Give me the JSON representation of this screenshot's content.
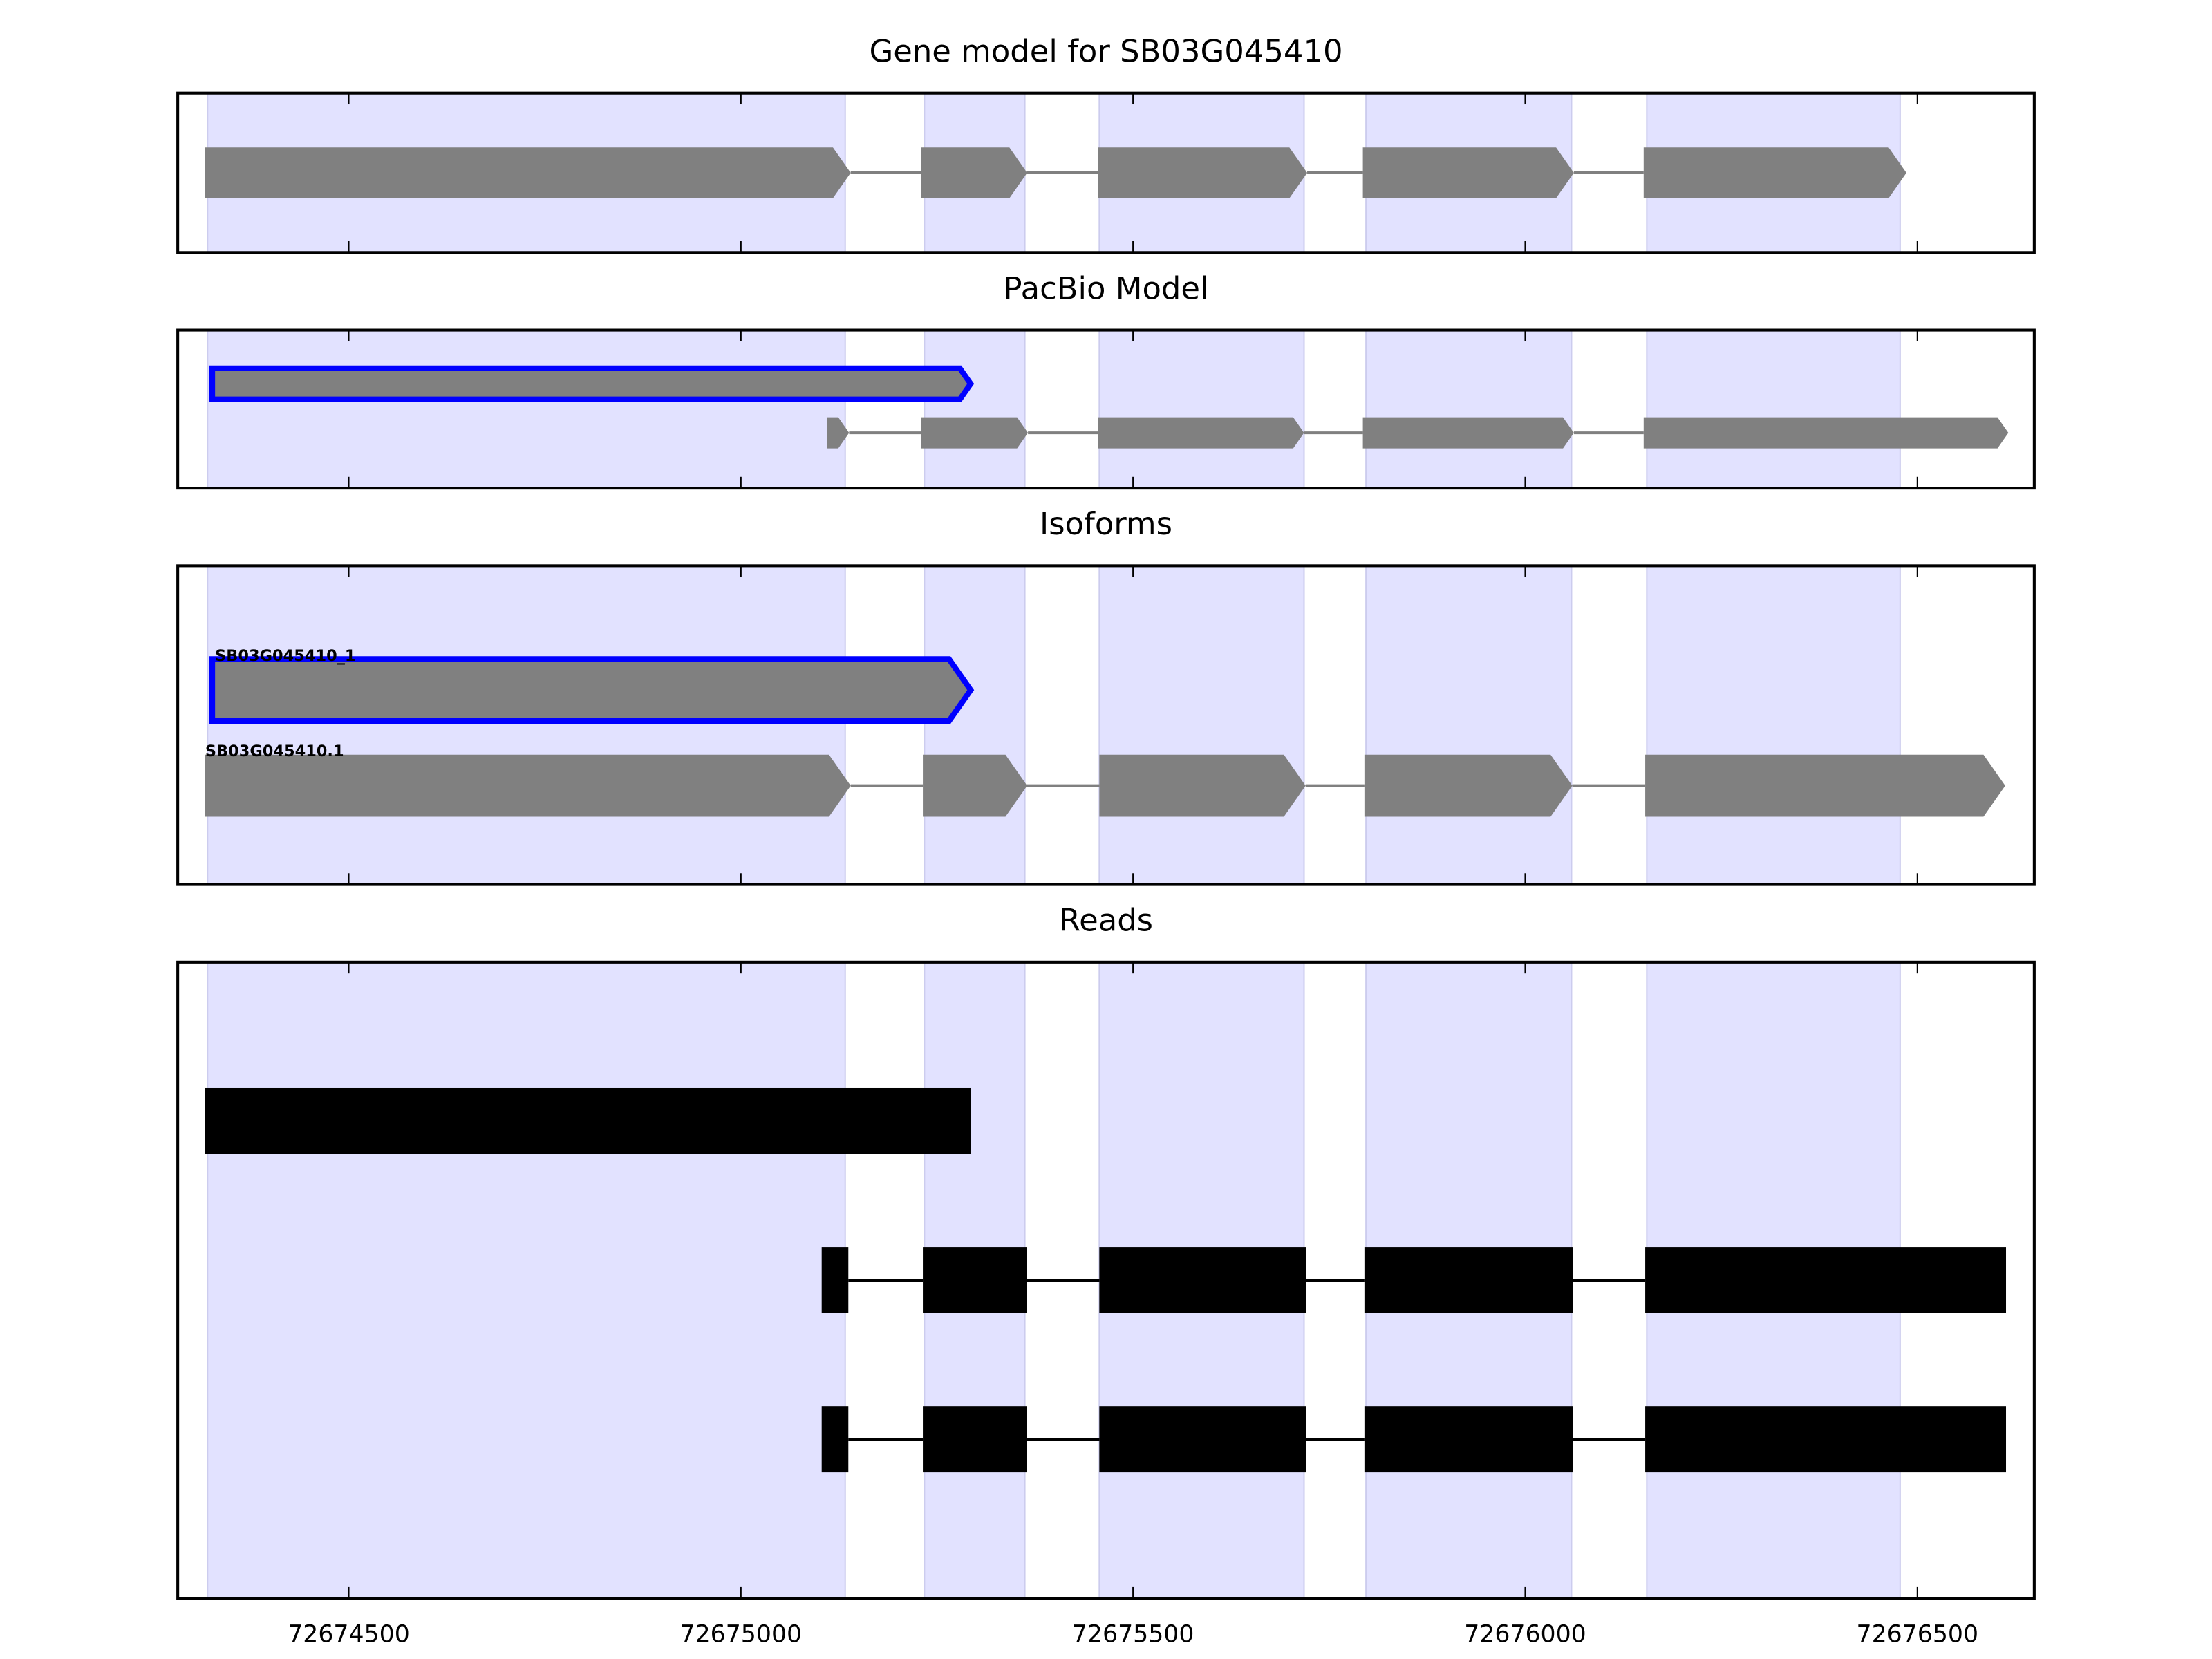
{
  "chart_data": [
    {
      "type": "gene",
      "title": "Gene model for SB03G045410",
      "xlim": [
        72674282,
        72676649
      ],
      "xticks": [
        72674500,
        72675000,
        72675500,
        72676000,
        72676500
      ],
      "shaded": [
        [
          72674320,
          72675133
        ],
        [
          72675234,
          72675362
        ],
        [
          72675457,
          72675718
        ],
        [
          72675797,
          72676059
        ],
        [
          72676155,
          72676478
        ]
      ],
      "tracks": [
        {
          "color": "#808080",
          "exons": [
            [
              72674317,
              72675140
            ],
            [
              72675230,
              72675365
            ],
            [
              72675455,
              72675722
            ],
            [
              72675793,
              72676062
            ],
            [
              72676151,
              72676486
            ]
          ]
        }
      ]
    },
    {
      "type": "gene",
      "title": "PacBio Model",
      "xlim": [
        72674282,
        72676649
      ],
      "xticks": [
        72674500,
        72675000,
        72675500,
        72676000,
        72676500
      ],
      "shaded": [
        [
          72674320,
          72675133
        ],
        [
          72675234,
          72675362
        ],
        [
          72675457,
          72675718
        ],
        [
          72675797,
          72676059
        ],
        [
          72676155,
          72676478
        ]
      ],
      "tracks": [
        {
          "color": "#808080",
          "edgecolor": "#0000ff",
          "exons": [
            [
              72674326,
              72675293
            ]
          ]
        },
        {
          "color": "#808080",
          "exons": [
            [
              72675110,
              72675138
            ],
            [
              72675230,
              72675366
            ],
            [
              72675455,
              72675718
            ],
            [
              72675793,
              72676062
            ],
            [
              72676151,
              72676616
            ]
          ]
        }
      ]
    },
    {
      "type": "gene",
      "title": "Isoforms",
      "xlim": [
        72674282,
        72676649
      ],
      "xticks": [
        72674500,
        72675000,
        72675500,
        72676000,
        72676500
      ],
      "shaded": [
        [
          72674320,
          72675133
        ],
        [
          72675234,
          72675362
        ],
        [
          72675457,
          72675718
        ],
        [
          72675797,
          72676059
        ],
        [
          72676155,
          72676478
        ]
      ],
      "tracks": [
        {
          "name": "SB03G045410_1",
          "color": "#808080",
          "edgecolor": "#0000ff",
          "exons": [
            [
              72674326,
              72675293
            ]
          ]
        },
        {
          "name": "SB03G045410.1",
          "color": "#808080",
          "exons": [
            [
              72674317,
              72675140
            ],
            [
              72675232,
              72675365
            ],
            [
              72675457,
              72675720
            ],
            [
              72675795,
              72676060
            ],
            [
              72676153,
              72676612
            ]
          ]
        }
      ]
    },
    {
      "type": "reads",
      "title": "Reads",
      "xlim": [
        72674282,
        72676649
      ],
      "xticks": [
        72674500,
        72675000,
        72675500,
        72676000,
        72676500
      ],
      "shaded": [
        [
          72674320,
          72675133
        ],
        [
          72675234,
          72675362
        ],
        [
          72675457,
          72675718
        ],
        [
          72675797,
          72676059
        ],
        [
          72676155,
          72676478
        ]
      ],
      "tracks": [
        {
          "color": "#000000",
          "exons": [
            [
              72674317,
              72675293
            ]
          ]
        },
        {
          "color": "#000000",
          "exons": [
            [
              72675103,
              72675137
            ],
            [
              72675232,
              72675365
            ],
            [
              72675457,
              72675721
            ],
            [
              72675795,
              72676061
            ],
            [
              72676153,
              72676613
            ]
          ]
        },
        {
          "color": "#000000",
          "exons": [
            [
              72675103,
              72675137
            ],
            [
              72675232,
              72675365
            ],
            [
              72675457,
              72675721
            ],
            [
              72675795,
              72676061
            ],
            [
              72676153,
              72676613
            ]
          ]
        }
      ]
    }
  ]
}
